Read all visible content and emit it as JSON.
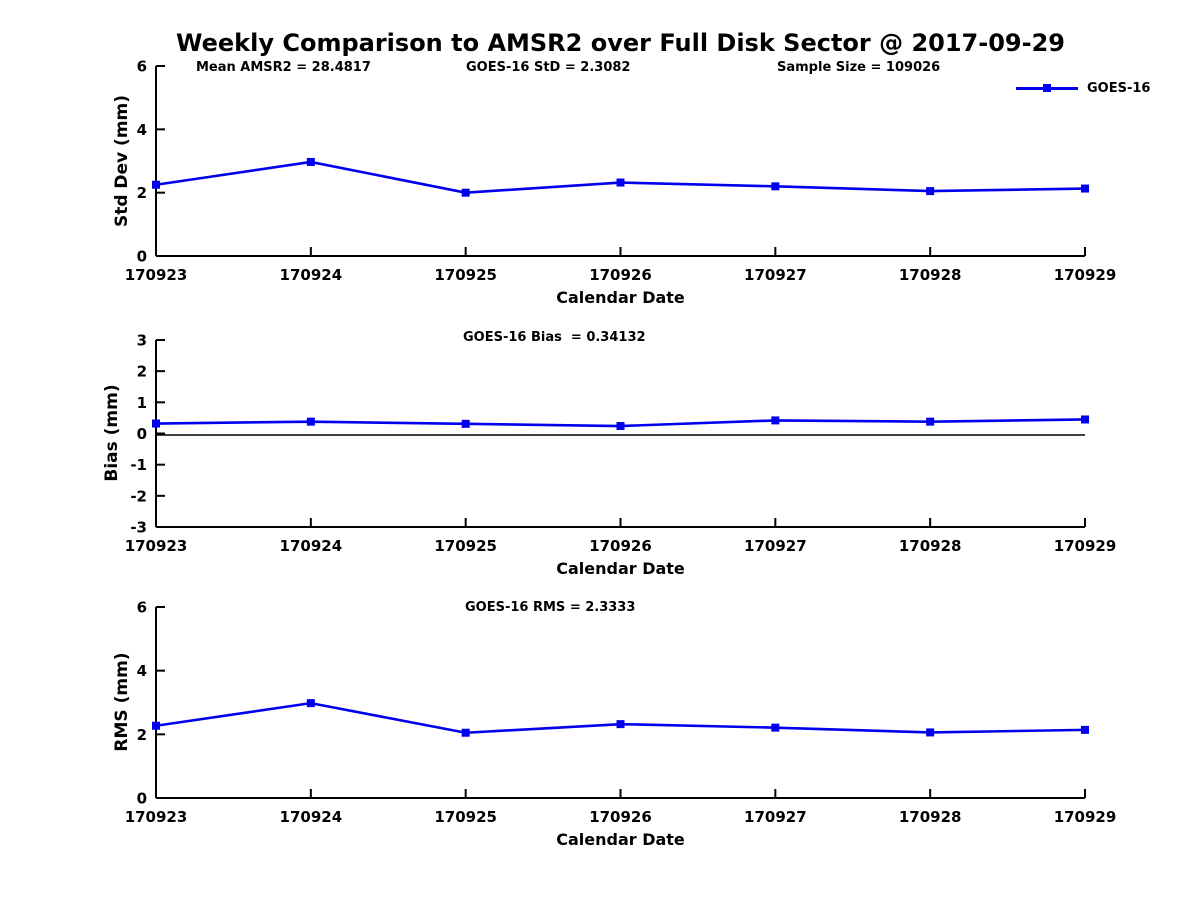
{
  "figure": {
    "title": "Weekly Comparison to AMSR2 over Full Disk Sector @ 2017-09-29",
    "series_color": "#0000EE",
    "axis_color": "#000000",
    "legend": {
      "label": "GOES-16"
    }
  },
  "chart_data": [
    {
      "id": "std-dev",
      "type": "line",
      "ylabel": "Std Dev (mm)",
      "xlabel": "Calendar Date",
      "ylim": [
        0,
        6
      ],
      "yticks": [
        0,
        2,
        4,
        6
      ],
      "categories": [
        "170923",
        "170924",
        "170925",
        "170926",
        "170927",
        "170928",
        "170929"
      ],
      "values": [
        2.25,
        2.97,
        2.0,
        2.32,
        2.2,
        2.05,
        2.13
      ],
      "annotations": [
        "Mean AMSR2 = 28.4817",
        "GOES-16 StD = 2.3082",
        "Sample Size = 109026"
      ],
      "zero_line": false,
      "legend_entry": "GOES-16",
      "grid": false
    },
    {
      "id": "bias",
      "type": "line",
      "ylabel": "Bias (mm)",
      "xlabel": "Calendar Date",
      "ylim": [
        -3,
        3
      ],
      "yticks": [
        -3,
        -2,
        -1,
        0,
        1,
        2,
        3
      ],
      "categories": [
        "170923",
        "170924",
        "170925",
        "170926",
        "170927",
        "170928",
        "170929"
      ],
      "values": [
        0.32,
        0.38,
        0.31,
        0.24,
        0.42,
        0.38,
        0.45
      ],
      "annotations": [
        "GOES-16 Bias  = 0.34132"
      ],
      "zero_line": true,
      "grid": false
    },
    {
      "id": "rms",
      "type": "line",
      "ylabel": "RMS (mm)",
      "xlabel": "Calendar Date",
      "ylim": [
        0,
        6
      ],
      "yticks": [
        0,
        2,
        4,
        6
      ],
      "categories": [
        "170923",
        "170924",
        "170925",
        "170926",
        "170927",
        "170928",
        "170929"
      ],
      "values": [
        2.27,
        2.98,
        2.05,
        2.32,
        2.21,
        2.06,
        2.14
      ],
      "annotations": [
        "GOES-16 RMS = 2.3333"
      ],
      "zero_line": false,
      "grid": false
    }
  ]
}
